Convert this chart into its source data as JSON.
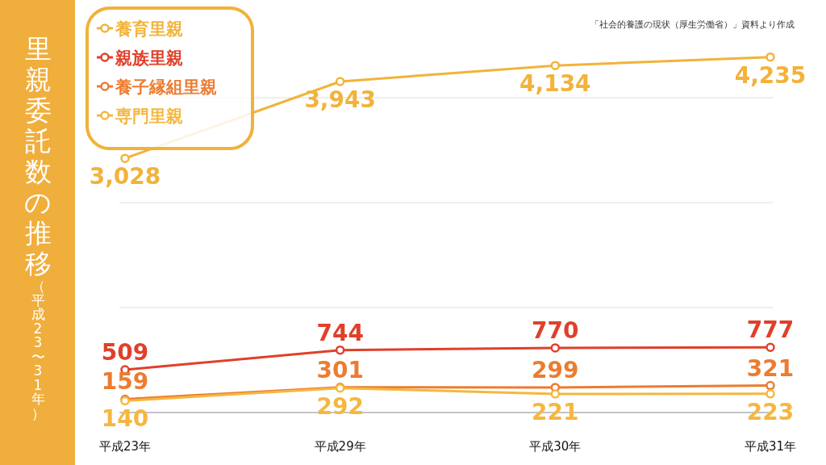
{
  "chart_data": {
    "type": "line",
    "title": "里親委託数の推移",
    "subtitle": "（平成23〜31年）",
    "annotations": [
      "「社会的養護の現状（厚生労働省）」資料より作成"
    ],
    "categories": [
      "平成23年",
      "平成29年",
      "平成30年",
      "平成31年"
    ],
    "series": [
      {
        "name": "養育里親",
        "color": "#f2b33a",
        "values": [
          3028,
          3943,
          4134,
          4235
        ],
        "value_labels": [
          "3,028",
          "3,943",
          "4,134",
          "4,235"
        ]
      },
      {
        "name": "親族里親",
        "color": "#e0402a",
        "values": [
          509,
          744,
          770,
          777
        ],
        "value_labels": [
          "509",
          "744",
          "770",
          "777"
        ]
      },
      {
        "name": "養子縁組里親",
        "color": "#ec7c30",
        "values": [
          159,
          301,
          299,
          321
        ],
        "value_labels": [
          "159",
          "301",
          "299",
          "321"
        ]
      },
      {
        "name": "専門里親",
        "color": "#f5b740",
        "values": [
          140,
          292,
          221,
          223
        ],
        "value_labels": [
          "140",
          "292",
          "221",
          "223"
        ]
      }
    ],
    "yticks": [
      {
        "value": 0,
        "label": null
      },
      {
        "value": 1250,
        "label": null
      },
      {
        "value": 2500,
        "label": null
      },
      {
        "value": 3750,
        "label": null
      }
    ],
    "grid": "y",
    "legend": "top left",
    "marker": "circle",
    "line_style": "solid"
  }
}
